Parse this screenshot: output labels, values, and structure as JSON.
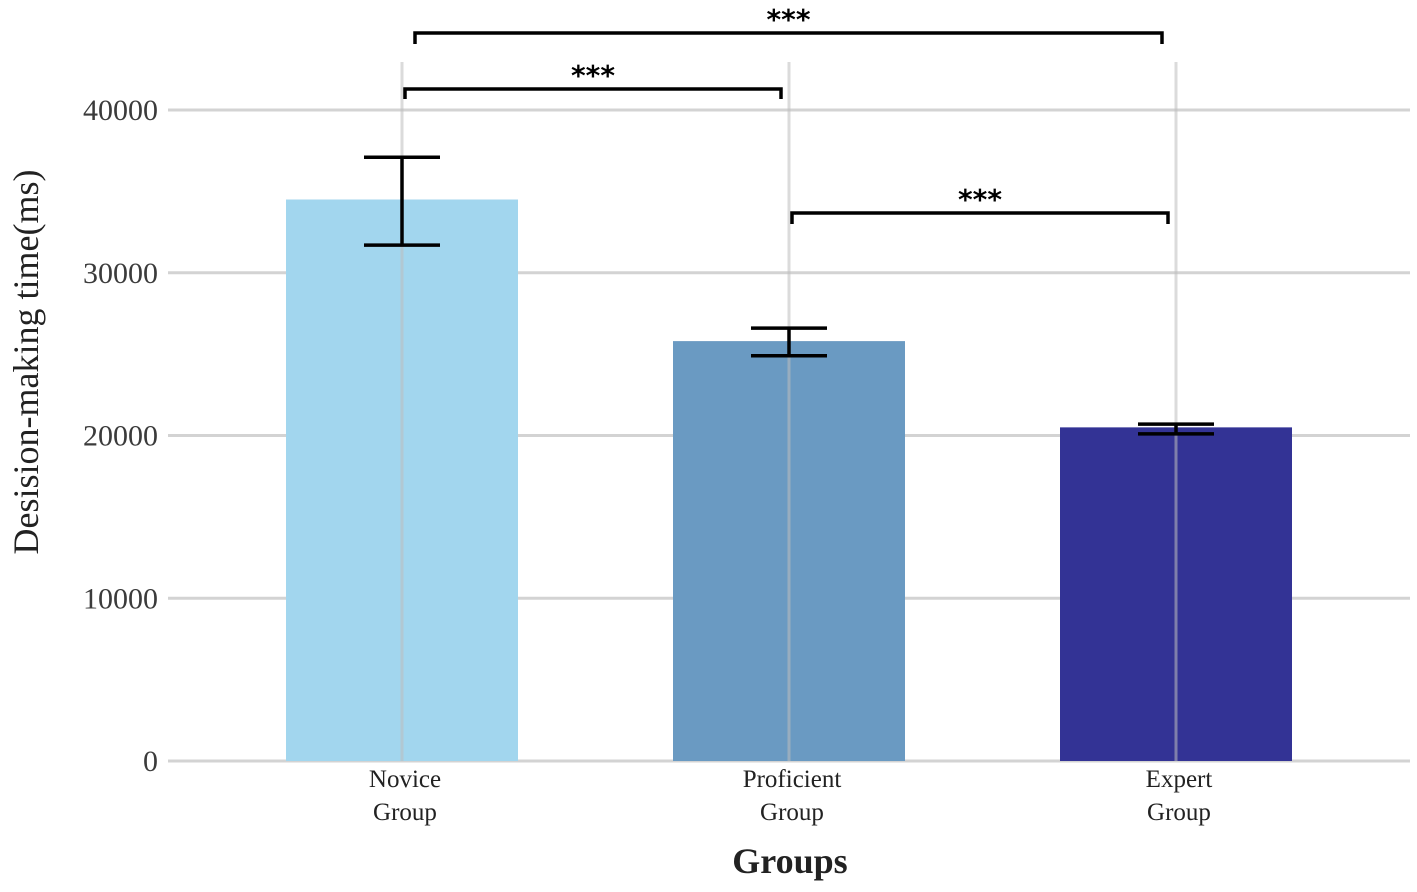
{
  "chart_data": {
    "type": "bar",
    "categories": [
      [
        "Novice",
        "Group"
      ],
      [
        "Proficient",
        "Group"
      ],
      [
        "Expert",
        "Group"
      ]
    ],
    "values": [
      34500,
      25800,
      20500
    ],
    "errors": [
      [
        31700,
        37100
      ],
      [
        24900,
        26600
      ],
      [
        20100,
        20700
      ]
    ],
    "colors": [
      "#a2d6ee",
      "#6a9ac2",
      "#333395"
    ],
    "xlabel": "Groups",
    "ylabel": "Desision-making time(ms)",
    "ylim": [
      0,
      40000
    ],
    "yticks": [
      0,
      10000,
      20000,
      30000,
      40000
    ],
    "grid": true,
    "significance": [
      {
        "from": 0,
        "to": 1,
        "label": "***"
      },
      {
        "from": 1,
        "to": 2,
        "label": "***"
      },
      {
        "from": 0,
        "to": 2,
        "label": "***"
      }
    ]
  }
}
